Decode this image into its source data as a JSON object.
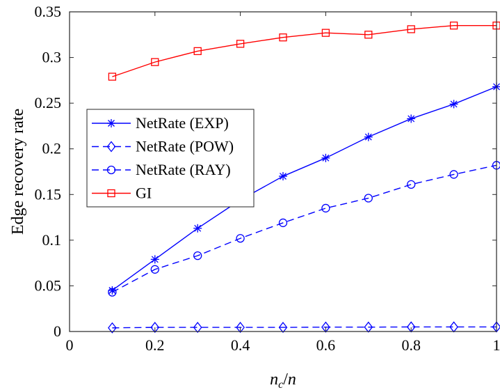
{
  "chart_data": {
    "type": "line",
    "xlabel": "n_c/n",
    "ylabel": "Edge recovery rate",
    "xlim": [
      0,
      1
    ],
    "ylim": [
      0,
      0.35
    ],
    "xticks": [
      0,
      0.2,
      0.4,
      0.6,
      0.8,
      1
    ],
    "xtick_labels": [
      "0",
      "0.2",
      "0.4",
      "0.6",
      "0.8",
      "1"
    ],
    "yticks": [
      0,
      0.05,
      0.1,
      0.15,
      0.2,
      0.25,
      0.3,
      0.35
    ],
    "ytick_labels": [
      "0",
      "0.05",
      "0.1",
      "0.15",
      "0.2",
      "0.25",
      "0.3",
      "0.35"
    ],
    "grid": false,
    "legend_position": "left",
    "x": [
      0.1,
      0.2,
      0.3,
      0.4,
      0.5,
      0.6,
      0.7,
      0.8,
      0.9,
      1.0
    ],
    "series": [
      {
        "name": "NetRate (EXP)",
        "color": "#0000ff",
        "line": "solid",
        "marker": "asterisk",
        "values": [
          0.045,
          0.079,
          0.113,
          0.144,
          0.17,
          0.19,
          0.213,
          0.233,
          0.249,
          0.268
        ]
      },
      {
        "name": "NetRate (POW)",
        "color": "#0000ff",
        "line": "dashed",
        "marker": "diamond",
        "values": [
          0.004,
          0.0045,
          0.0045,
          0.0045,
          0.0045,
          0.0048,
          0.0048,
          0.005,
          0.005,
          0.005
        ]
      },
      {
        "name": "NetRate (RAY)",
        "color": "#0000ff",
        "line": "dashed",
        "marker": "circle",
        "values": [
          0.043,
          0.068,
          0.083,
          0.102,
          0.119,
          0.135,
          0.146,
          0.161,
          0.172,
          0.182
        ]
      },
      {
        "name": "GI",
        "color": "#ff0000",
        "line": "solid",
        "marker": "square",
        "values": [
          0.279,
          0.295,
          0.307,
          0.315,
          0.322,
          0.327,
          0.325,
          0.331,
          0.335,
          0.335
        ]
      }
    ]
  }
}
